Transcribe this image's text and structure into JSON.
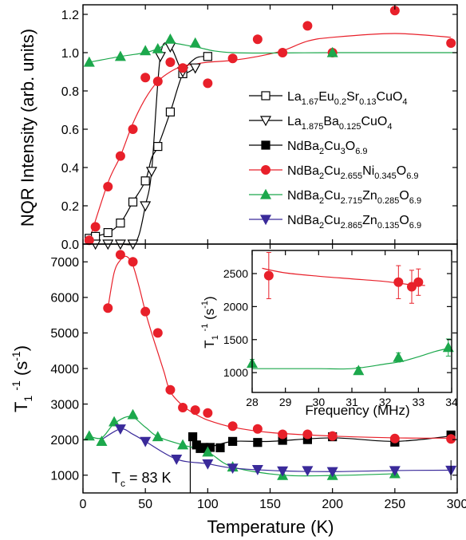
{
  "chart_data": [
    {
      "type": "scatter",
      "panel": "top",
      "ylabel": "NQR Intensity (arb. units)",
      "xlim": [
        0,
        300
      ],
      "ylim": [
        0,
        1.25
      ],
      "yticks": [
        "0.0",
        "0.2",
        "0.4",
        "0.6",
        "0.8",
        "1.0",
        "1.2"
      ],
      "legend_placement": "right",
      "series": [
        {
          "name": "La1.67Eu0.2Sr0.13CuO4",
          "marker": "square-open",
          "color": "#000000",
          "x": [
            5,
            10,
            20,
            30,
            40,
            50,
            60,
            70,
            80,
            100
          ],
          "y": [
            0.03,
            0.04,
            0.06,
            0.11,
            0.22,
            0.33,
            0.51,
            0.69,
            0.89,
            0.98
          ],
          "curve_x": [
            5,
            10,
            20,
            30,
            40,
            50,
            55,
            60,
            70,
            80,
            90,
            100
          ],
          "curve_y": [
            0.03,
            0.04,
            0.06,
            0.11,
            0.22,
            0.33,
            0.45,
            0.51,
            0.69,
            0.89,
            0.97,
            0.98
          ]
        },
        {
          "name": "La1.875Ba0.125CuO4",
          "marker": "triangle-down-open",
          "color": "#000000",
          "x": [
            10,
            20,
            30,
            40,
            50,
            55,
            62,
            70,
            80,
            90
          ],
          "y": [
            0.0,
            0.0,
            0.0,
            0.0,
            0.2,
            0.38,
            0.98,
            1.03,
            0.9,
            0.92
          ],
          "curve_x": [
            10,
            20,
            30,
            40,
            45,
            50,
            55,
            62,
            70,
            80,
            90
          ],
          "curve_y": [
            0.0,
            0.0,
            0.0,
            0.0,
            0.05,
            0.2,
            0.38,
            0.98,
            1.03,
            0.9,
            0.92
          ]
        },
        {
          "name": "NdBa2Cu3O6.9",
          "marker": "square",
          "color": "#000000",
          "x": [],
          "y": []
        },
        {
          "name": "NdBa2Cu2.655Ni0.345O6.9",
          "marker": "circle",
          "color": "#e8202a",
          "x": [
            5,
            10,
            20,
            30,
            40,
            50,
            60,
            70,
            80,
            100,
            120,
            140,
            160,
            180,
            200,
            250,
            295
          ],
          "y": [
            0.02,
            0.09,
            0.3,
            0.46,
            0.6,
            0.87,
            0.85,
            0.95,
            0.92,
            0.84,
            0.97,
            1.07,
            1.0,
            1.14,
            1.0,
            1.22,
            1.05
          ],
          "curve_x": [
            5,
            20,
            30,
            40,
            50,
            60,
            70,
            80,
            90,
            100,
            120,
            140,
            160,
            180,
            200,
            250,
            295
          ],
          "curve_y": [
            0.02,
            0.32,
            0.46,
            0.63,
            0.76,
            0.85,
            0.9,
            0.93,
            0.94,
            0.95,
            0.96,
            0.98,
            1.01,
            1.06,
            1.08,
            1.1,
            1.08
          ]
        },
        {
          "name": "NdBa2Cu2.715Zn0.285O6.9",
          "marker": "triangle-up",
          "color": "#1ca84c",
          "x": [
            5,
            30,
            50,
            60,
            70,
            90,
            200
          ],
          "y": [
            0.95,
            0.98,
            1.01,
            1.02,
            1.07,
            1.05,
            1.0
          ],
          "curve_x": [
            5,
            30,
            50,
            60,
            70,
            90,
            120,
            200,
            300
          ],
          "curve_y": [
            0.95,
            0.98,
            1.0,
            1.02,
            1.05,
            1.03,
            1.0,
            1.0,
            1.0
          ]
        },
        {
          "name": "NdBa2Cu2.865Zn0.135O6.9",
          "marker": "triangle-down",
          "color": "#3a2a9a",
          "x": [],
          "y": []
        }
      ]
    },
    {
      "type": "scatter",
      "panel": "bottom",
      "xlabel": "Temperature (K)",
      "ylabel": "T1 -1 (s -1)",
      "xlim": [
        0,
        300
      ],
      "ylim": [
        500,
        7500
      ],
      "xticks": [
        "0",
        "50",
        "100",
        "150",
        "200",
        "250",
        "300"
      ],
      "yticks": [
        "1000",
        "2000",
        "3000",
        "4000",
        "5000",
        "6000",
        "7000"
      ],
      "annotation": "T = 83 K",
      "annotation_sub": "c",
      "annotation_x": 86,
      "series": [
        {
          "name": "NdBa2Cu3O6.9",
          "marker": "square",
          "color": "#000000",
          "x": [
            88,
            91,
            94,
            97,
            102,
            110,
            120,
            140,
            160,
            180,
            200,
            250,
            295
          ],
          "y": [
            2080,
            1850,
            1750,
            1780,
            1780,
            1770,
            1950,
            1920,
            1980,
            2000,
            2080,
            1930,
            2130
          ],
          "curve_x": [
            88,
            100,
            120,
            150,
            200,
            250,
            295
          ],
          "curve_y": [
            2000,
            1800,
            1950,
            1950,
            2050,
            1950,
            2100
          ]
        },
        {
          "name": "NdBa2Cu2.655Ni0.345O6.9",
          "marker": "circle",
          "color": "#e8202a",
          "x": [
            20,
            30,
            40,
            50,
            60,
            70,
            80,
            90,
            100,
            120,
            140,
            160,
            180,
            200,
            250,
            295
          ],
          "y": [
            5700,
            7200,
            7000,
            5600,
            5000,
            3400,
            2900,
            2830,
            2750,
            2380,
            2300,
            2150,
            2150,
            2100,
            2030,
            2020
          ],
          "curve_x": [
            20,
            25,
            30,
            35,
            40,
            45,
            50,
            55,
            60,
            65,
            70,
            80,
            90,
            100,
            120,
            150,
            200,
            250,
            295
          ],
          "curve_y": [
            5700,
            6700,
            7050,
            7150,
            6900,
            6300,
            5600,
            5000,
            4450,
            3900,
            3350,
            2950,
            2720,
            2550,
            2350,
            2200,
            2100,
            2050,
            2040
          ]
        },
        {
          "name": "NdBa2Cu2.715Zn0.285O6.9",
          "marker": "triangle-up",
          "color": "#1ca84c",
          "x": [
            5,
            15,
            25,
            40,
            60,
            80,
            100,
            120,
            160,
            200,
            250
          ],
          "y": [
            2100,
            1950,
            2500,
            2700,
            2080,
            1850,
            1650,
            1230,
            990,
            990,
            1040
          ],
          "curve_x": [
            5,
            15,
            25,
            38,
            50,
            60,
            80,
            100,
            120,
            160,
            200,
            250
          ],
          "curve_y": [
            2100,
            2050,
            2450,
            2650,
            2350,
            2080,
            1850,
            1650,
            1230,
            1000,
            990,
            1040
          ]
        },
        {
          "name": "NdBa2Cu2.865Zn0.135O6.9",
          "marker": "triangle-down",
          "color": "#3a2a9a",
          "x": [
            30,
            50,
            75,
            100,
            120,
            140,
            160,
            180,
            200,
            250,
            295
          ],
          "y": [
            2300,
            1950,
            1450,
            1320,
            1200,
            1160,
            1120,
            1130,
            1100,
            1130,
            1140
          ],
          "curve_x": [
            15,
            30,
            40,
            50,
            75,
            100,
            120,
            160,
            200,
            250,
            295
          ],
          "curve_y": [
            2000,
            2300,
            2150,
            1950,
            1450,
            1320,
            1200,
            1120,
            1100,
            1130,
            1140
          ]
        }
      ]
    },
    {
      "type": "scatter",
      "panel": "inset",
      "xlabel": "Frequency (MHz)",
      "ylabel": "T1 -1 (s -1)",
      "xlim": [
        28,
        34
      ],
      "ylim": [
        700,
        2850
      ],
      "xticks": [
        "28",
        "29",
        "30",
        "31",
        "32",
        "33",
        "34"
      ],
      "yticks": [
        "1000",
        "1500",
        "2000",
        "2500"
      ],
      "series": [
        {
          "name": "NdBa2Cu2.655Ni0.345O6.9",
          "marker": "circle",
          "color": "#e8202a",
          "x": [
            28.5,
            32.4,
            32.8,
            33.0
          ],
          "y": [
            2470,
            2370,
            2300,
            2370
          ],
          "err": [
            350,
            250,
            250,
            200
          ],
          "curve_x": [
            28.3,
            29,
            30,
            31,
            32,
            32.8,
            33.2
          ],
          "curve_y": [
            2580,
            2510,
            2460,
            2420,
            2380,
            2330,
            2320
          ]
        },
        {
          "name": "NdBa2Cu2.715Zn0.285O6.9",
          "marker": "triangle-up",
          "color": "#1ca84c",
          "x": [
            28.0,
            31.2,
            32.4,
            33.9
          ],
          "y": [
            1140,
            1030,
            1230,
            1380
          ],
          "err": [
            60,
            50,
            70,
            130
          ],
          "curve_x": [
            28,
            29,
            30,
            31,
            32,
            32.5,
            33,
            33.5,
            34
          ],
          "curve_y": [
            1060,
            1060,
            1060,
            1060,
            1130,
            1170,
            1240,
            1320,
            1380
          ]
        }
      ]
    }
  ],
  "legend": [
    {
      "base": "La",
      "parts": [
        [
          "La",
          ""
        ],
        [
          "1.67",
          "sub"
        ],
        [
          "Eu",
          ""
        ],
        [
          "0.2",
          "sub"
        ],
        [
          "Sr",
          ""
        ],
        [
          "0.13",
          "sub"
        ],
        [
          "CuO",
          ""
        ],
        [
          "4",
          "sub"
        ]
      ],
      "marker": "square-open",
      "color": "#000000"
    },
    {
      "parts": [
        [
          "La",
          ""
        ],
        [
          "1.875",
          "sub"
        ],
        [
          "Ba",
          ""
        ],
        [
          "0.125",
          "sub"
        ],
        [
          "CuO",
          ""
        ],
        [
          "4",
          "sub"
        ]
      ],
      "marker": "triangle-down-open",
      "color": "#000000"
    },
    {
      "parts": [
        [
          "NdBa",
          ""
        ],
        [
          "2",
          "sub"
        ],
        [
          "Cu",
          ""
        ],
        [
          "3",
          "sub"
        ],
        [
          "O",
          ""
        ],
        [
          "6.9",
          "sub"
        ]
      ],
      "marker": "square",
      "color": "#000000"
    },
    {
      "parts": [
        [
          "NdBa",
          ""
        ],
        [
          "2",
          "sub"
        ],
        [
          "Cu",
          ""
        ],
        [
          "2.655",
          "sub"
        ],
        [
          "Ni",
          ""
        ],
        [
          "0.345",
          "sub"
        ],
        [
          "O",
          ""
        ],
        [
          "6.9",
          "sub"
        ]
      ],
      "marker": "circle",
      "color": "#e8202a"
    },
    {
      "parts": [
        [
          "NdBa",
          ""
        ],
        [
          "2",
          "sub"
        ],
        [
          "Cu",
          ""
        ],
        [
          "2.715",
          "sub"
        ],
        [
          "Zn",
          ""
        ],
        [
          "0.285",
          "sub"
        ],
        [
          "O",
          ""
        ],
        [
          "6.9",
          "sub"
        ]
      ],
      "marker": "triangle-up",
      "color": "#1ca84c"
    },
    {
      "parts": [
        [
          "NdBa",
          ""
        ],
        [
          "2",
          "sub"
        ],
        [
          "Cu",
          ""
        ],
        [
          "2.865",
          "sub"
        ],
        [
          "Zn",
          ""
        ],
        [
          "0.135",
          "sub"
        ],
        [
          "O",
          ""
        ],
        [
          "6.9",
          "sub"
        ]
      ],
      "marker": "triangle-down",
      "color": "#3a2a9a"
    }
  ]
}
